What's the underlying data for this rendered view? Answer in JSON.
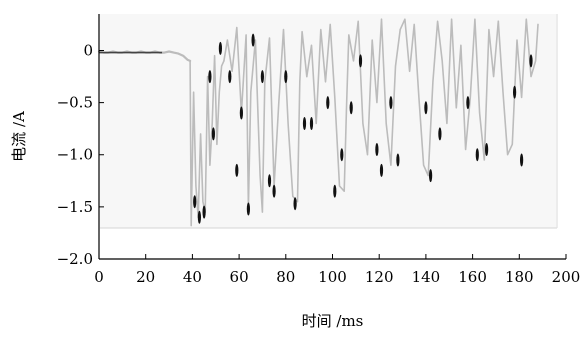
{
  "chart_data": {
    "type": "line",
    "title": "",
    "xlabel": "时间 /ms",
    "ylabel": "电流 /A",
    "xlim": [
      0,
      200
    ],
    "ylim": [
      -2.0,
      0.35
    ],
    "x_ticks": [
      0,
      20,
      40,
      60,
      80,
      100,
      120,
      140,
      160,
      180,
      200
    ],
    "y_ticks": [
      {
        "value": 0,
        "label": "0"
      },
      {
        "value": -0.5,
        "label": "−0.5"
      },
      {
        "value": -1.0,
        "label": "−1.0"
      },
      {
        "value": -1.5,
        "label": "−1.5"
      },
      {
        "value": -2.0,
        "label": "−2.0"
      }
    ],
    "grid": false,
    "legend": "none",
    "colors": {
      "trace": "#bcbcbc",
      "marks": "#111111",
      "axes": "#000000"
    },
    "series": [
      {
        "style": "line",
        "x": [
          0,
          2,
          4,
          6,
          8,
          10,
          12,
          14,
          16,
          18,
          20,
          22,
          24,
          26,
          28,
          30,
          32,
          34,
          36,
          37,
          38,
          39
        ],
        "y": [
          -0.01,
          -0.02,
          -0.02,
          -0.01,
          -0.02,
          -0.02,
          -0.01,
          -0.02,
          -0.02,
          -0.01,
          -0.02,
          -0.02,
          -0.01,
          -0.02,
          -0.02,
          -0.01,
          -0.02,
          -0.03,
          -0.05,
          -0.07,
          -0.09,
          -0.1
        ]
      },
      {
        "style": "line",
        "x": [
          39,
          39.5,
          40.5,
          41.5,
          42.5,
          43.5,
          44.5,
          45.5,
          46.5,
          47.5,
          48.5,
          49.5,
          50.5,
          51.5,
          52.5,
          53.5
        ],
        "y": [
          -0.1,
          -1.68,
          -0.4,
          -1.3,
          -1.6,
          -0.8,
          -1.45,
          -1.55,
          -0.25,
          -1.1,
          -0.7,
          -0.05,
          -0.9,
          -0.4,
          -0.15,
          -0.1
        ]
      },
      {
        "style": "line",
        "x": [
          53.5,
          55,
          57,
          59,
          61,
          63,
          64,
          65,
          67,
          69,
          70,
          71,
          73,
          75,
          77,
          79,
          81,
          83,
          85,
          86,
          87,
          89
        ],
        "y": [
          -0.1,
          0.1,
          -0.2,
          0.22,
          -0.6,
          0.15,
          -1.5,
          -0.4,
          0.1,
          -1.2,
          -1.55,
          -0.3,
          0.12,
          -1.3,
          -0.5,
          0.2,
          -0.7,
          -1.4,
          -1.45,
          -0.3,
          0.18,
          -0.25
        ]
      },
      {
        "style": "line",
        "x": [
          89,
          91,
          93,
          95,
          97,
          99,
          101,
          103,
          105,
          106,
          107,
          109,
          111,
          113,
          115,
          117,
          119,
          121,
          123,
          125,
          127,
          129
        ],
        "y": [
          -0.25,
          0.05,
          -0.7,
          0.2,
          -0.3,
          0.25,
          -0.45,
          -1.3,
          -1.35,
          -0.55,
          0.15,
          -0.1,
          0.28,
          -0.7,
          -1.0,
          0.1,
          -0.5,
          0.3,
          -0.7,
          -1.1,
          -0.15,
          0.2
        ]
      },
      {
        "style": "line",
        "x": [
          129,
          131,
          133,
          135,
          137,
          139,
          141,
          143,
          145,
          147,
          149,
          151,
          153,
          155,
          157,
          159,
          161,
          163,
          165,
          167,
          169,
          171
        ],
        "y": [
          0.2,
          0.3,
          -0.2,
          0.25,
          -0.45,
          -1.1,
          -1.2,
          -0.3,
          0.28,
          -0.1,
          -0.7,
          0.3,
          -0.55,
          0.05,
          -0.95,
          -0.45,
          0.3,
          -0.6,
          -1.05,
          0.2,
          -0.25,
          0.28
        ]
      },
      {
        "style": "line",
        "x": [
          171,
          173,
          175,
          177,
          179,
          181,
          183,
          185,
          187,
          188
        ],
        "y": [
          0.28,
          -0.4,
          -1.0,
          -0.9,
          0.1,
          -0.45,
          0.3,
          -0.25,
          -0.1,
          0.25
        ]
      },
      {
        "style": "marks",
        "x": [
          41,
          43,
          45,
          47.5,
          49,
          52,
          56,
          59,
          61,
          64,
          66,
          70,
          73,
          75,
          80,
          84,
          88,
          91,
          98,
          101,
          104,
          108,
          112,
          119,
          121,
          125,
          128,
          140,
          142,
          146,
          158,
          162,
          166,
          178,
          181,
          185
        ],
        "y": [
          -1.45,
          -1.6,
          -1.55,
          -0.25,
          -0.8,
          0.02,
          -0.25,
          -1.15,
          -0.6,
          -1.52,
          0.1,
          -0.25,
          -1.25,
          -1.35,
          -0.25,
          -1.47,
          -0.7,
          -0.7,
          -0.5,
          -1.35,
          -1.0,
          -0.55,
          -0.1,
          -0.95,
          -1.15,
          -0.5,
          -1.05,
          -0.55,
          -1.2,
          -0.8,
          -0.5,
          -1.0,
          -0.95,
          -0.4,
          -1.05,
          -0.1
        ]
      }
    ]
  }
}
